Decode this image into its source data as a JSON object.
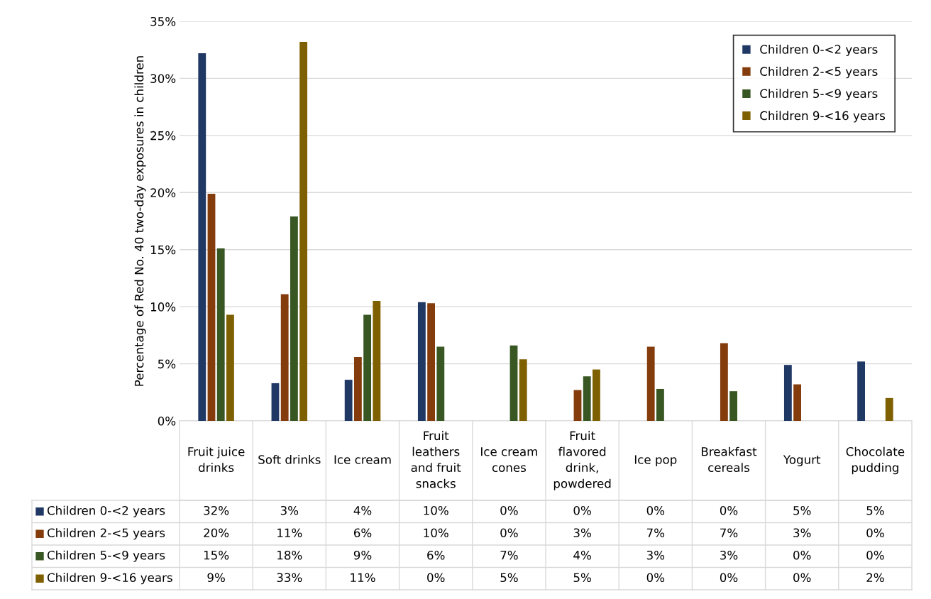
{
  "chart_data": {
    "type": "bar",
    "ylabel": "Percentage of Red No. 40 two-day exposures in children",
    "categories": [
      "Fruit juice\ndrinks",
      "Soft drinks",
      "Ice cream",
      "Fruit\nleathers\nand fruit\nsnacks",
      "Ice cream\ncones",
      "Fruit\nflavored\ndrink,\npowdered",
      "Ice pop",
      "Breakfast\ncereals",
      "Yogurt",
      "Chocolate\npudding"
    ],
    "series": [
      {
        "name": "Children 0-<2 years",
        "color": "#203864",
        "values": [
          32.2,
          3.3,
          3.6,
          10.4,
          0,
          0,
          0,
          0,
          4.9,
          5.2
        ],
        "value_labels": [
          "32%",
          "3%",
          "4%",
          "10%",
          "0%",
          "0%",
          "0%",
          "0%",
          "5%",
          "5%"
        ]
      },
      {
        "name": "Children 2-<5 years",
        "color": "#843c0c",
        "values": [
          19.9,
          11.1,
          5.6,
          10.3,
          0,
          2.7,
          6.5,
          6.8,
          3.2,
          0
        ],
        "value_labels": [
          "20%",
          "11%",
          "6%",
          "10%",
          "0%",
          "3%",
          "7%",
          "7%",
          "3%",
          "0%"
        ]
      },
      {
        "name": "Children 5-<9 years",
        "color": "#385723",
        "values": [
          15.1,
          17.9,
          9.3,
          6.5,
          6.6,
          3.9,
          2.8,
          2.6,
          0,
          0
        ],
        "value_labels": [
          "15%",
          "18%",
          "9%",
          "6%",
          "7%",
          "4%",
          "3%",
          "3%",
          "0%",
          "0%"
        ]
      },
      {
        "name": "Children 9-<16 years",
        "color": "#7f6000",
        "values": [
          9.3,
          33.2,
          10.5,
          0,
          5.4,
          4.5,
          0,
          0,
          0,
          2.0
        ],
        "value_labels": [
          "9%",
          "33%",
          "11%",
          "0%",
          "5%",
          "5%",
          "0%",
          "0%",
          "0%",
          "2%"
        ]
      }
    ],
    "ylim": [
      0,
      35
    ],
    "yticks": [
      {
        "value": 0,
        "label": "0%"
      },
      {
        "value": 5,
        "label": "5%"
      },
      {
        "value": 10,
        "label": "10%"
      },
      {
        "value": 15,
        "label": "15%"
      },
      {
        "value": 20,
        "label": "20%"
      },
      {
        "value": 25,
        "label": "25%"
      },
      {
        "value": 30,
        "label": "30%"
      },
      {
        "value": 35,
        "label": "35%"
      }
    ],
    "grid": "y",
    "legend": "top right"
  }
}
